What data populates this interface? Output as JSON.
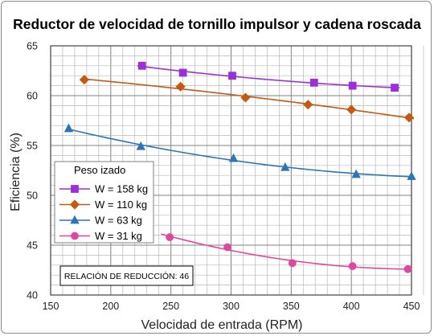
{
  "chart_data": {
    "type": "line",
    "title": "Reductor de velocidad de tornillo impulsor y cadena roscada",
    "xlabel": "Velocidad de entrada (RPM)",
    "ylabel": "Eficiencia (%)",
    "xlim": [
      150,
      450
    ],
    "ylim": [
      40,
      65
    ],
    "x_ticks": [
      150,
      200,
      250,
      300,
      350,
      400,
      450
    ],
    "y_ticks": [
      40,
      45,
      50,
      55,
      60,
      65
    ],
    "x_tick_labels": [
      "150",
      "200",
      "250",
      "300",
      "350",
      "400",
      "450"
    ],
    "y_tick_labels": [
      "40",
      "45",
      "50",
      "55",
      "60",
      "65"
    ],
    "grid": true,
    "legend_title": "Peso izado",
    "legend_position": "left-center",
    "annotation": "RELACIÓN DE REDUCCIÓN: 46",
    "series": [
      {
        "name": "W = 158 kg",
        "color": "#9b30d9",
        "marker": "square",
        "x": [
          226,
          260,
          301,
          369,
          401,
          436
        ],
        "y": [
          63.0,
          62.3,
          62.0,
          61.3,
          61.0,
          60.8
        ],
        "fit_range": [
          222,
          440
        ]
      },
      {
        "name": "W = 110 kg",
        "color": "#c65911",
        "marker": "diamond",
        "x": [
          178,
          258,
          312,
          364,
          400,
          448
        ],
        "y": [
          61.6,
          60.9,
          59.8,
          59.1,
          58.6,
          57.8
        ],
        "fit_range": [
          175,
          452
        ]
      },
      {
        "name": "W = 63 kg",
        "color": "#2e75b6",
        "marker": "triangle",
        "x": [
          165,
          225,
          302,
          345,
          404,
          450
        ],
        "y": [
          56.7,
          54.9,
          53.7,
          52.8,
          52.1,
          51.9
        ],
        "fit_range": [
          163,
          452
        ]
      },
      {
        "name": "W = 31 kg",
        "color": "#e0479e",
        "marker": "circle",
        "x": [
          249,
          297,
          351,
          401,
          447
        ],
        "y": [
          45.8,
          44.8,
          43.2,
          42.9,
          42.6
        ],
        "fit_range": [
          242,
          450
        ]
      }
    ]
  }
}
